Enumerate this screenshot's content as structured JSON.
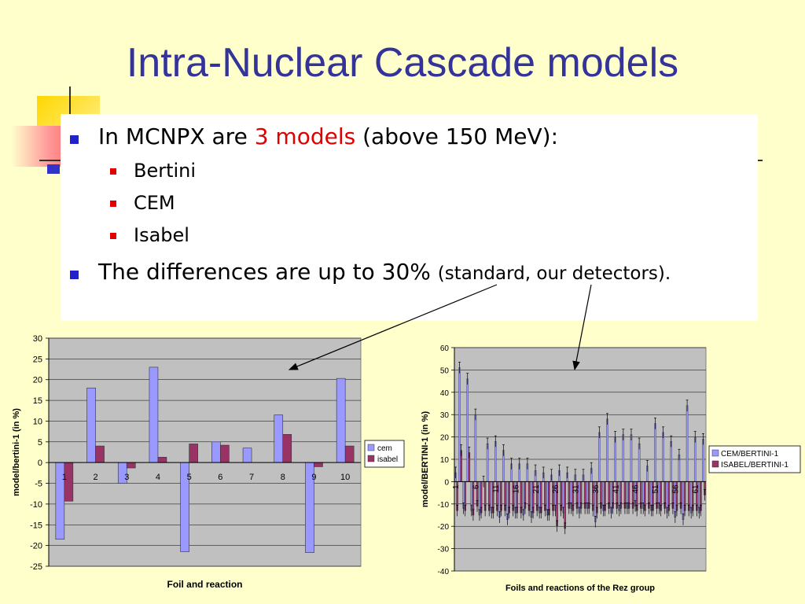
{
  "slide": {
    "title": "Intra-Nuclear Cascade models",
    "bullets": {
      "b1_pre": "In MCNPX are ",
      "b1_red": "3 models",
      "b1_post": " (above 150 MeV):",
      "sub1": "Bertini",
      "sub2": "CEM",
      "sub3": "Isabel",
      "b2_main": "The differences are up to 30% ",
      "b2_small": "(standard, our detectors)."
    },
    "colors": {
      "title": "#333399",
      "accent_red": "#E00000",
      "background": "#FFFFCC"
    }
  },
  "chart_data": [
    {
      "type": "bar",
      "title": "",
      "xlabel": "Foil and reaction",
      "ylabel": "model/bertini-1 (in %)",
      "ylim": [
        -25,
        30
      ],
      "yticks": [
        "30",
        "25",
        "20",
        "15",
        "10",
        "5",
        "0",
        "-5",
        "-10",
        "-15",
        "-20",
        "-25"
      ],
      "categories": [
        "1",
        "2",
        "3",
        "4",
        "5",
        "6",
        "7",
        "8",
        "9",
        "10"
      ],
      "series": [
        {
          "name": "cem",
          "color": "#9999FF",
          "values": [
            -18.5,
            18,
            -5,
            23,
            -21.5,
            5,
            3.5,
            11.5,
            -21.7,
            20.3
          ]
        },
        {
          "name": "isabel",
          "color": "#993366",
          "values": [
            -9.3,
            4,
            -1.3,
            1.3,
            4.5,
            4.2,
            null,
            6.8,
            -1,
            4
          ]
        }
      ],
      "legend": "right",
      "grid": true,
      "plot_bg": "#C0C0C0"
    },
    {
      "type": "bar",
      "title": "",
      "xlabel": "Foils and reactions of the Rez group",
      "ylabel": "model/BERTINI-1 (in %)",
      "ylim": [
        -40,
        60
      ],
      "yticks": [
        "60",
        "50",
        "40",
        "30",
        "20",
        "10",
        "0",
        "-10",
        "-20",
        "-30",
        "-40"
      ],
      "xtick_labels": [
        "1",
        "6",
        "11",
        "16",
        "21",
        "26",
        "31",
        "36",
        "41",
        "46",
        "51",
        "56",
        "61"
      ],
      "categories_count": 63,
      "error_bars": true,
      "series": [
        {
          "name": "CEM/BERTINI-1",
          "color": "#9999FF",
          "values": [
            4,
            51,
            -12,
            46,
            -13,
            30,
            -15,
            0,
            17,
            -14,
            18,
            -16,
            14,
            -17,
            8,
            -14,
            8,
            -15,
            8,
            -16,
            5,
            -14,
            4,
            -15,
            3,
            -13,
            5,
            -14,
            4,
            -12,
            3,
            -14,
            3,
            -12,
            6,
            -18,
            22,
            -13,
            28,
            -14,
            20,
            -13,
            21,
            -12,
            21,
            -11,
            17,
            -12,
            7,
            -13,
            26,
            -12,
            22,
            -14,
            18,
            -16,
            12,
            -17,
            34,
            -14,
            20,
            -14,
            19
          ]
        },
        {
          "name": "ISABEL/BERTINI-1",
          "color": "#993366",
          "values": [
            -13,
            14,
            -13,
            13,
            -15,
            -11,
            -14,
            -13,
            -13,
            -14,
            -13,
            -13,
            -13,
            -14,
            -13,
            -14,
            -14,
            -12,
            -13,
            -14,
            -13,
            -14,
            -13,
            -15,
            -13,
            -20,
            -13,
            -21,
            -12,
            -13,
            -12,
            -12,
            -12,
            -12,
            -13,
            -14,
            -12,
            -13,
            -12,
            -12,
            -12,
            -12,
            -12,
            -12,
            -12,
            -13,
            -12,
            -13,
            -12,
            -13,
            -12,
            -13,
            -12,
            -13,
            -12,
            -13,
            -12,
            -13,
            -13,
            -13,
            -13,
            -13,
            -6
          ]
        }
      ],
      "legend": "right",
      "grid": true,
      "plot_bg": "#C0C0C0"
    }
  ]
}
